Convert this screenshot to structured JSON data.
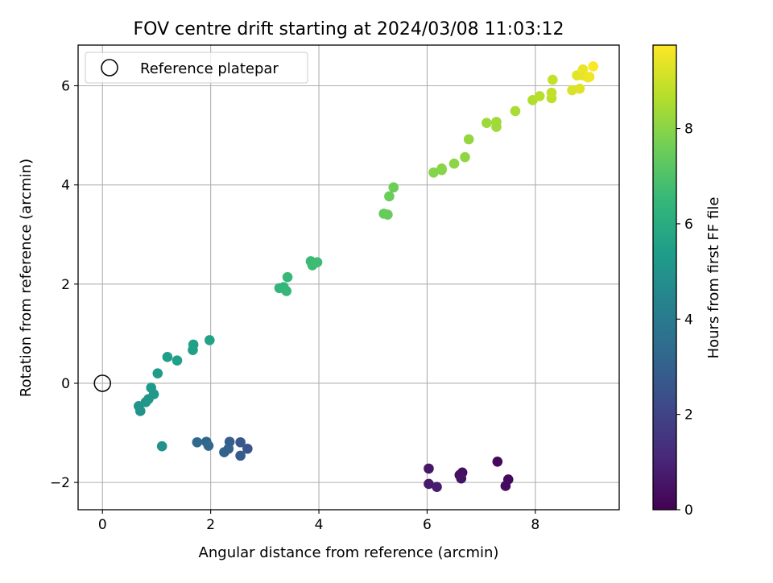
{
  "chart_data": {
    "type": "scatter",
    "title": "FOV centre drift starting at 2024/03/08 11:03:12",
    "xlabel": "Angular distance from reference (arcmin)",
    "ylabel": "Rotation from reference (arcmin)",
    "xlim": [
      -0.45,
      9.55
    ],
    "ylim": [
      -2.55,
      6.82
    ],
    "xticks": [
      0,
      2,
      4,
      6,
      8
    ],
    "xtick_labels": [
      "0",
      "2",
      "4",
      "6",
      "8"
    ],
    "yticks": [
      -2,
      0,
      2,
      4,
      6
    ],
    "ytick_labels": [
      "−2",
      "0",
      "2",
      "4",
      "6"
    ],
    "grid": true,
    "legend": {
      "position": "top-left",
      "entries": [
        "Reference platepar"
      ]
    },
    "reference_point": {
      "x": 0,
      "y": 0,
      "marker": "open-circle"
    },
    "colorbar": {
      "label": "Hours from first FF file",
      "colormap": "viridis",
      "range": [
        0,
        9.75
      ],
      "ticks": [
        0,
        2,
        4,
        6,
        8
      ],
      "tick_labels": [
        "0",
        "2",
        "4",
        "6",
        "8"
      ]
    },
    "colormap_stops": [
      "#440154",
      "#482878",
      "#3e4989",
      "#31688e",
      "#26828e",
      "#1f9e89",
      "#35b779",
      "#6ece58",
      "#b5de2b",
      "#fde725"
    ],
    "points": [
      {
        "x": 7.3,
        "y": -1.58,
        "t": 0.2
      },
      {
        "x": 7.5,
        "y": -1.94,
        "t": 0.25
      },
      {
        "x": 7.45,
        "y": -2.07,
        "t": 0.3
      },
      {
        "x": 6.65,
        "y": -1.8,
        "t": 0.4
      },
      {
        "x": 6.6,
        "y": -1.85,
        "t": 0.45
      },
      {
        "x": 6.63,
        "y": -1.92,
        "t": 0.5
      },
      {
        "x": 6.03,
        "y": -1.72,
        "t": 0.6
      },
      {
        "x": 6.03,
        "y": -2.03,
        "t": 0.7
      },
      {
        "x": 6.18,
        "y": -2.09,
        "t": 0.8
      },
      {
        "x": 2.68,
        "y": -1.32,
        "t": 2.6
      },
      {
        "x": 2.55,
        "y": -1.19,
        "t": 2.7
      },
      {
        "x": 2.55,
        "y": -1.46,
        "t": 2.8
      },
      {
        "x": 2.35,
        "y": -1.18,
        "t": 2.9
      },
      {
        "x": 2.33,
        "y": -1.32,
        "t": 3.0
      },
      {
        "x": 2.25,
        "y": -1.39,
        "t": 3.05
      },
      {
        "x": 1.92,
        "y": -1.18,
        "t": 3.15
      },
      {
        "x": 1.96,
        "y": -1.26,
        "t": 3.2
      },
      {
        "x": 1.75,
        "y": -1.19,
        "t": 3.3
      },
      {
        "x": 1.1,
        "y": -1.27,
        "t": 4.95
      },
      {
        "x": 0.7,
        "y": -0.56,
        "t": 5.0
      },
      {
        "x": 0.67,
        "y": -0.46,
        "t": 5.05
      },
      {
        "x": 0.8,
        "y": -0.38,
        "t": 5.1
      },
      {
        "x": 0.85,
        "y": -0.32,
        "t": 5.15
      },
      {
        "x": 0.95,
        "y": -0.22,
        "t": 5.2
      },
      {
        "x": 0.9,
        "y": -0.09,
        "t": 5.25
      },
      {
        "x": 1.02,
        "y": 0.2,
        "t": 5.3
      },
      {
        "x": 1.2,
        "y": 0.53,
        "t": 5.4
      },
      {
        "x": 1.38,
        "y": 0.46,
        "t": 5.45
      },
      {
        "x": 1.67,
        "y": 0.67,
        "t": 5.5
      },
      {
        "x": 1.68,
        "y": 0.78,
        "t": 5.55
      },
      {
        "x": 1.98,
        "y": 0.87,
        "t": 5.6
      },
      {
        "x": 3.27,
        "y": 1.92,
        "t": 6.4
      },
      {
        "x": 3.35,
        "y": 1.94,
        "t": 6.45
      },
      {
        "x": 3.4,
        "y": 1.86,
        "t": 6.5
      },
      {
        "x": 3.42,
        "y": 2.14,
        "t": 6.55
      },
      {
        "x": 3.85,
        "y": 2.46,
        "t": 6.6
      },
      {
        "x": 3.88,
        "y": 2.38,
        "t": 6.65
      },
      {
        "x": 3.97,
        "y": 2.44,
        "t": 6.7
      },
      {
        "x": 5.2,
        "y": 3.42,
        "t": 7.4
      },
      {
        "x": 5.27,
        "y": 3.4,
        "t": 7.45
      },
      {
        "x": 5.3,
        "y": 3.77,
        "t": 7.5
      },
      {
        "x": 5.38,
        "y": 3.95,
        "t": 7.55
      },
      {
        "x": 6.12,
        "y": 4.25,
        "t": 7.9
      },
      {
        "x": 6.27,
        "y": 4.3,
        "t": 7.95
      },
      {
        "x": 6.27,
        "y": 4.33,
        "t": 8.0
      },
      {
        "x": 6.5,
        "y": 4.43,
        "t": 8.05
      },
      {
        "x": 6.7,
        "y": 4.56,
        "t": 8.1
      },
      {
        "x": 6.77,
        "y": 4.92,
        "t": 8.15
      },
      {
        "x": 7.1,
        "y": 5.25,
        "t": 8.3
      },
      {
        "x": 7.28,
        "y": 5.17,
        "t": 8.35
      },
      {
        "x": 7.28,
        "y": 5.27,
        "t": 8.35
      },
      {
        "x": 7.63,
        "y": 5.49,
        "t": 8.5
      },
      {
        "x": 7.95,
        "y": 5.71,
        "t": 8.6
      },
      {
        "x": 8.08,
        "y": 5.79,
        "t": 8.7
      },
      {
        "x": 8.3,
        "y": 5.75,
        "t": 8.8
      },
      {
        "x": 8.3,
        "y": 5.86,
        "t": 8.85
      },
      {
        "x": 8.32,
        "y": 6.12,
        "t": 8.9
      },
      {
        "x": 8.68,
        "y": 5.91,
        "t": 9.2
      },
      {
        "x": 8.82,
        "y": 5.94,
        "t": 9.3
      },
      {
        "x": 8.77,
        "y": 6.21,
        "t": 9.35
      },
      {
        "x": 8.87,
        "y": 6.21,
        "t": 9.4
      },
      {
        "x": 8.88,
        "y": 6.33,
        "t": 9.45
      },
      {
        "x": 8.97,
        "y": 6.17,
        "t": 9.5
      },
      {
        "x": 9.0,
        "y": 6.18,
        "t": 9.55
      },
      {
        "x": 9.07,
        "y": 6.39,
        "t": 9.7
      }
    ]
  }
}
